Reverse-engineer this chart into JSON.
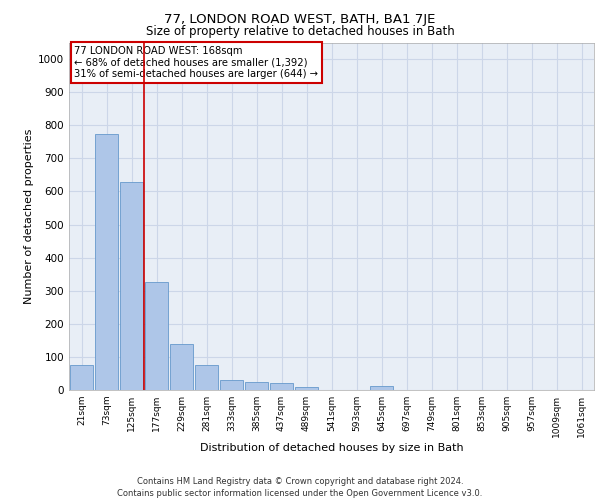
{
  "title_line1": "77, LONDON ROAD WEST, BATH, BA1 7JE",
  "title_line2": "Size of property relative to detached houses in Bath",
  "xlabel": "Distribution of detached houses by size in Bath",
  "ylabel": "Number of detached properties",
  "categories": [
    "21sqm",
    "73sqm",
    "125sqm",
    "177sqm",
    "229sqm",
    "281sqm",
    "333sqm",
    "385sqm",
    "437sqm",
    "489sqm",
    "541sqm",
    "593sqm",
    "645sqm",
    "697sqm",
    "749sqm",
    "801sqm",
    "853sqm",
    "905sqm",
    "957sqm",
    "1009sqm",
    "1061sqm"
  ],
  "bar_values": [
    75,
    775,
    630,
    325,
    140,
    75,
    30,
    25,
    20,
    10,
    0,
    0,
    12,
    0,
    0,
    0,
    0,
    0,
    0,
    0,
    0
  ],
  "bar_color": "#aec6e8",
  "bar_edge_color": "#6699cc",
  "vline_x_index": 2.5,
  "vline_color": "#cc0000",
  "annotation_text": "77 LONDON ROAD WEST: 168sqm\n← 68% of detached houses are smaller (1,392)\n31% of semi-detached houses are larger (644) →",
  "annotation_box_color": "#ffffff",
  "annotation_box_edge_color": "#cc0000",
  "ylim": [
    0,
    1050
  ],
  "yticks": [
    0,
    100,
    200,
    300,
    400,
    500,
    600,
    700,
    800,
    900,
    1000
  ],
  "footer_line1": "Contains HM Land Registry data © Crown copyright and database right 2024.",
  "footer_line2": "Contains public sector information licensed under the Open Government Licence v3.0.",
  "grid_color": "#ccd6e8",
  "bg_color": "#e8eef6"
}
